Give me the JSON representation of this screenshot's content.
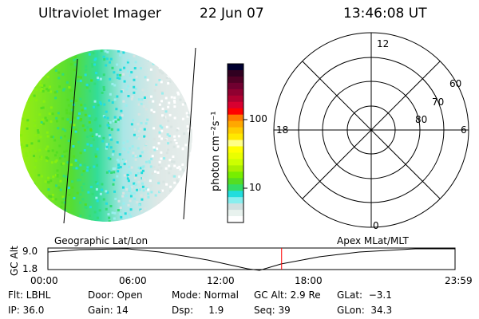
{
  "header": {
    "instrument": "Ultraviolet Imager",
    "date": "22 Jun 07",
    "time": "13:46:08 UT"
  },
  "colorbar": {
    "label": "photon cm⁻²s⁻¹",
    "ticks": [
      "100",
      "10"
    ],
    "colors": [
      "#000030",
      "#300020",
      "#500025",
      "#700030",
      "#900030",
      "#b00030",
      "#d80030",
      "#ff0000",
      "#ff7800",
      "#ffa800",
      "#ffcc00",
      "#ffe800",
      "#ffff88",
      "#ffff00",
      "#eaff00",
      "#ccff00",
      "#aaf000",
      "#77ee00",
      "#55dd22",
      "#33dd66",
      "#22dddd",
      "#88eeee",
      "#d0e0e0",
      "#e8f2ee",
      "#ffffff"
    ]
  },
  "polar": {
    "lat_labels": [
      "60",
      "70",
      "80"
    ],
    "mlt_labels": {
      "top": "12",
      "left": "18",
      "right": "6",
      "bottom": "0"
    }
  },
  "timeline": {
    "left_label": "Geographic Lat/Lon",
    "right_label": "Apex MLat/MLT",
    "y_axis_label": "GC Alt",
    "y_max": "9.0",
    "y_min": "1.8",
    "x_ticks": [
      "00:00",
      "06:00",
      "12:00",
      "18:00",
      "23:59"
    ],
    "current_time_fraction": 0.574,
    "marker_color": "#ff0000"
  },
  "info": {
    "row1": [
      "Flt: LBHL",
      "Door: Open",
      "Mode: Normal",
      "GC Alt: 2.9 Re",
      "GLat:  −3.1"
    ],
    "row2": [
      "IP: 36.0",
      "Gain: 14",
      "Dsp:     1.9",
      "Seq: 39",
      "GLon:  34.3"
    ]
  }
}
